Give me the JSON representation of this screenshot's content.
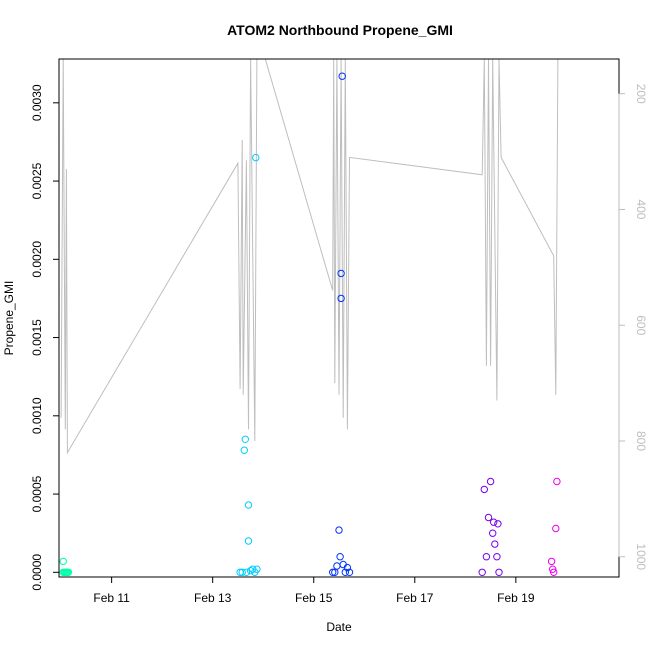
{
  "chart_data": {
    "type": "scatter",
    "title": "ATOM2 Northbound Propene_GMI",
    "xlabel": "Date",
    "ylabel": "Propene_GMI",
    "xlim": [
      "2017-02-09T23:00",
      "2017-02-21T01:00"
    ],
    "ylim": [
      -3e-05,
      0.00328
    ],
    "x_ticks": [
      {
        "date": "2017-02-11T00:00",
        "label": "Feb 11"
      },
      {
        "date": "2017-02-13T00:00",
        "label": "Feb 13"
      },
      {
        "date": "2017-02-15T00:00",
        "label": "Feb 15"
      },
      {
        "date": "2017-02-17T00:00",
        "label": "Feb 17"
      },
      {
        "date": "2017-02-19T00:00",
        "label": "Feb 19"
      }
    ],
    "y_ticks": [
      {
        "value": 0.0,
        "label": "0.0000"
      },
      {
        "value": 0.0005,
        "label": "0.0005"
      },
      {
        "value": 0.001,
        "label": "0.0010"
      },
      {
        "value": 0.0015,
        "label": "0.0015"
      },
      {
        "value": 0.002,
        "label": "0.0020"
      },
      {
        "value": 0.0025,
        "label": "0.0025"
      },
      {
        "value": 0.003,
        "label": "0.0030"
      }
    ],
    "y2_axis": {
      "reversed": true,
      "ylim": [
        1035,
        140
      ],
      "ticks": [
        {
          "value": 200,
          "label": "200"
        },
        {
          "value": 400,
          "label": "400"
        },
        {
          "value": 600,
          "label": "600"
        },
        {
          "value": 800,
          "label": "800"
        },
        {
          "value": 1000,
          "label": "1000"
        }
      ],
      "color": "#bebebe"
    },
    "series": [
      {
        "color": "#00ffaa",
        "points": [
          [
            "2017-02-10T01:00",
            7e-05
          ],
          [
            "2017-02-10T01:00",
            0.0
          ],
          [
            "2017-02-10T01:30",
            0.0
          ],
          [
            "2017-02-10T02:00",
            0.0
          ],
          [
            "2017-02-10T02:30",
            0.0
          ],
          [
            "2017-02-10T03:00",
            0.0
          ],
          [
            "2017-02-10T03:30",
            0.0
          ]
        ]
      },
      {
        "color": "#00ccff",
        "points": [
          [
            "2017-02-13T13:00",
            0.0
          ],
          [
            "2017-02-13T14:00",
            0.0
          ],
          [
            "2017-02-13T15:00",
            0.00078
          ],
          [
            "2017-02-13T15:30",
            0.00085
          ],
          [
            "2017-02-13T16:00",
            0.0
          ],
          [
            "2017-02-13T17:00",
            0.00043
          ],
          [
            "2017-02-13T17:00",
            0.0002
          ],
          [
            "2017-02-13T18:00",
            1e-05
          ],
          [
            "2017-02-13T19:00",
            2e-05
          ],
          [
            "2017-02-13T20:00",
            0.0
          ],
          [
            "2017-02-13T20:30",
            0.00265
          ],
          [
            "2017-02-13T21:00",
            2e-05
          ]
        ]
      },
      {
        "color": "#0033ff",
        "points": [
          [
            "2017-02-15T09:00",
            0.0
          ],
          [
            "2017-02-15T10:00",
            0.0
          ],
          [
            "2017-02-15T11:00",
            4e-05
          ],
          [
            "2017-02-15T12:00",
            0.00027
          ],
          [
            "2017-02-15T12:30",
            0.0001
          ],
          [
            "2017-02-15T13:00",
            0.00191
          ],
          [
            "2017-02-15T13:00",
            0.00175
          ],
          [
            "2017-02-15T13:30",
            0.00317
          ],
          [
            "2017-02-15T14:00",
            5e-05
          ],
          [
            "2017-02-15T15:00",
            0.0
          ],
          [
            "2017-02-15T16:00",
            3e-05
          ],
          [
            "2017-02-15T17:00",
            0.0
          ]
        ]
      },
      {
        "color": "#7700ee",
        "points": [
          [
            "2017-02-18T08:00",
            0.0
          ],
          [
            "2017-02-18T09:00",
            0.00053
          ],
          [
            "2017-02-18T10:00",
            0.0001
          ],
          [
            "2017-02-18T11:00",
            0.00035
          ],
          [
            "2017-02-18T12:00",
            0.00058
          ],
          [
            "2017-02-18T13:00",
            0.00025
          ],
          [
            "2017-02-18T13:30",
            0.00032
          ],
          [
            "2017-02-18T14:00",
            0.00018
          ],
          [
            "2017-02-18T15:00",
            0.0001
          ],
          [
            "2017-02-18T15:30",
            0.00031
          ],
          [
            "2017-02-18T16:00",
            0.0
          ]
        ]
      },
      {
        "color": "#ee00ee",
        "points": [
          [
            "2017-02-19T17:00",
            7e-05
          ],
          [
            "2017-02-19T17:30",
            2e-05
          ],
          [
            "2017-02-19T18:00",
            0.0
          ],
          [
            "2017-02-19T19:00",
            0.00028
          ],
          [
            "2017-02-19T19:30",
            0.00058
          ]
        ]
      }
    ],
    "pressure_line": {
      "color": "#bebebe",
      "axis": "y2",
      "points": [
        [
          "2017-02-10T00:00",
          760
        ],
        [
          "2017-02-10T01:00",
          140
        ],
        [
          "2017-02-10T02:00",
          780
        ],
        [
          "2017-02-10T02:30",
          330
        ],
        [
          "2017-02-10T03:00",
          820
        ],
        [
          "2017-02-13T12:00",
          320
        ],
        [
          "2017-02-13T13:00",
          710
        ],
        [
          "2017-02-13T14:00",
          280
        ],
        [
          "2017-02-13T14:30",
          720
        ],
        [
          "2017-02-13T16:00",
          315
        ],
        [
          "2017-02-13T17:00",
          780
        ],
        [
          "2017-02-13T18:00",
          140
        ],
        [
          "2017-02-13T20:00",
          800
        ],
        [
          "2017-02-13T21:00",
          140
        ],
        [
          "2017-02-14T01:00",
          140
        ],
        [
          "2017-02-15T09:00",
          540
        ],
        [
          "2017-02-15T09:30",
          140
        ],
        [
          "2017-02-15T10:00",
          700
        ],
        [
          "2017-02-15T11:00",
          140
        ],
        [
          "2017-02-15T12:00",
          720
        ],
        [
          "2017-02-15T13:00",
          140
        ],
        [
          "2017-02-15T14:00",
          760
        ],
        [
          "2017-02-15T15:00",
          140
        ],
        [
          "2017-02-15T16:00",
          780
        ],
        [
          "2017-02-15T17:00",
          310
        ],
        [
          "2017-02-18T08:00",
          340
        ],
        [
          "2017-02-18T09:00",
          140
        ],
        [
          "2017-02-18T10:00",
          670
        ],
        [
          "2017-02-18T11:00",
          140
        ],
        [
          "2017-02-18T12:00",
          670
        ],
        [
          "2017-02-18T13:00",
          140
        ],
        [
          "2017-02-18T15:00",
          730
        ],
        [
          "2017-02-18T16:00",
          140
        ],
        [
          "2017-02-18T17:00",
          310
        ],
        [
          "2017-02-19T18:00",
          480
        ],
        [
          "2017-02-19T19:00",
          720
        ],
        [
          "2017-02-19T20:00",
          140
        ]
      ]
    },
    "grid": false,
    "legend": "none"
  }
}
